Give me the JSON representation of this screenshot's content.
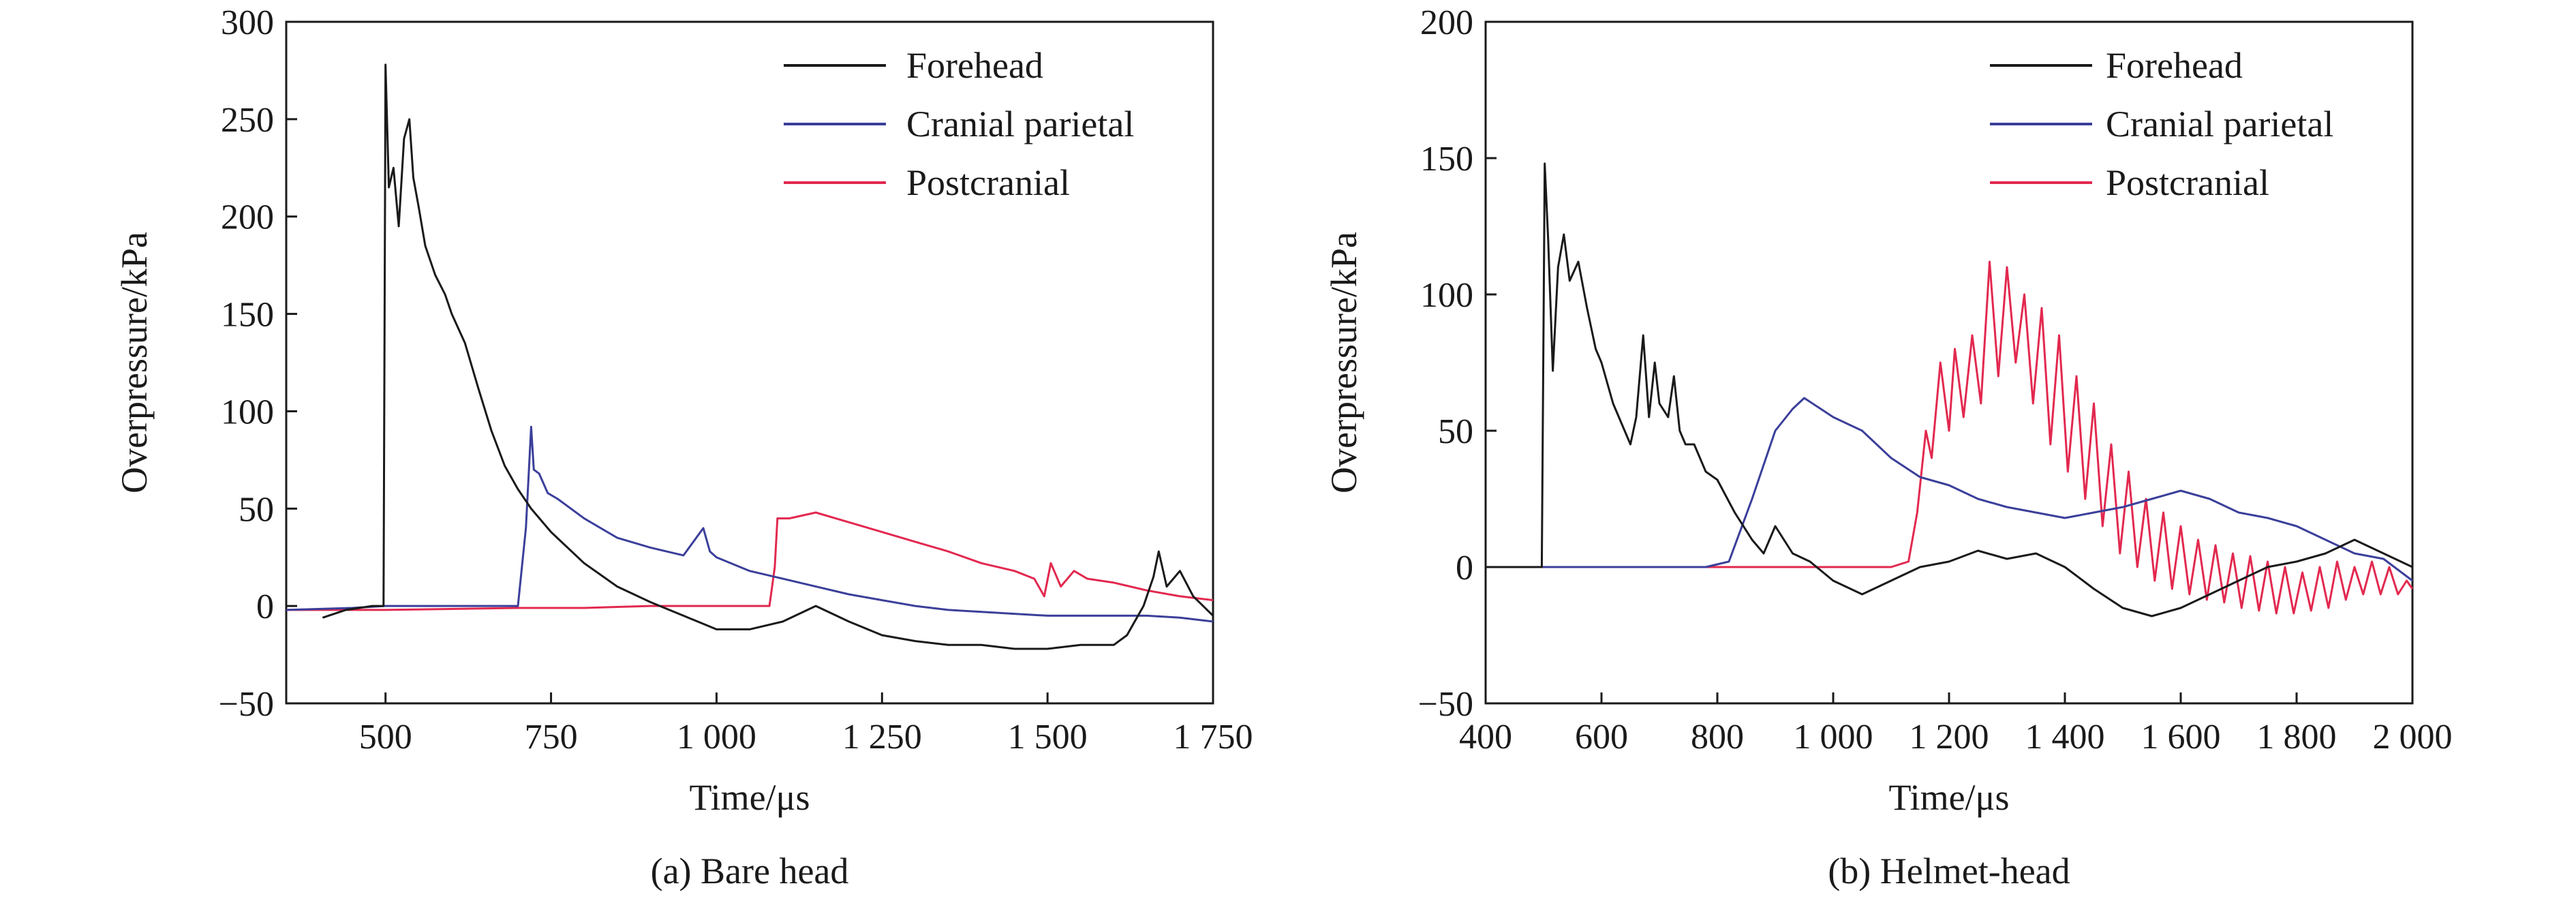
{
  "colors": {
    "Forehead": "#1a1a1a",
    "Cranial parietal": "#3b3f9a",
    "Postcranial": "#e2294f",
    "postcranial_transition": "#e07030"
  },
  "chart_data": [
    {
      "type": "line",
      "caption": "(a) Bare head",
      "xlabel": "Time/μs",
      "ylabel": "Overpressure/kPa",
      "xlim": [
        350,
        1750
      ],
      "ylim": [
        -50,
        300
      ],
      "xticks": [
        500,
        750,
        1000,
        1250,
        1500,
        1750
      ],
      "xtick_labels": [
        "500",
        "750",
        "1 000",
        "1 250",
        "1 500",
        "1 750"
      ],
      "yticks": [
        -50,
        0,
        50,
        100,
        150,
        200,
        250,
        300
      ],
      "ytick_labels": [
        "−50",
        "0",
        "50",
        "100",
        "150",
        "200",
        "250",
        "300"
      ],
      "legend_position": "top-right",
      "series": [
        {
          "name": "Forehead",
          "x": [
            405,
            440,
            480,
            497,
            500,
            505,
            512,
            520,
            528,
            536,
            542,
            550,
            560,
            575,
            590,
            600,
            620,
            640,
            660,
            680,
            700,
            720,
            750,
            800,
            850,
            900,
            950,
            1000,
            1050,
            1100,
            1150,
            1200,
            1250,
            1300,
            1350,
            1400,
            1450,
            1500,
            1550,
            1600,
            1620,
            1645,
            1660,
            1668,
            1680,
            1700,
            1720,
            1750
          ],
          "y": [
            -6,
            -2,
            0,
            0,
            278,
            215,
            225,
            195,
            240,
            250,
            220,
            205,
            185,
            170,
            160,
            150,
            135,
            112,
            90,
            72,
            60,
            50,
            38,
            22,
            10,
            2,
            -5,
            -12,
            -12,
            -8,
            0,
            -8,
            -15,
            -18,
            -20,
            -20,
            -22,
            -22,
            -20,
            -20,
            -15,
            0,
            15,
            28,
            10,
            18,
            5,
            -5
          ]
        },
        {
          "name": "Cranial parietal",
          "x": [
            350,
            450,
            500,
            550,
            600,
            650,
            700,
            712,
            720,
            724,
            732,
            745,
            760,
            800,
            850,
            900,
            950,
            980,
            990,
            1000,
            1050,
            1100,
            1150,
            1200,
            1250,
            1300,
            1350,
            1400,
            1450,
            1500,
            1550,
            1600,
            1650,
            1700,
            1750
          ],
          "y": [
            -2,
            -1,
            0,
            0,
            0,
            0,
            0,
            40,
            92,
            70,
            68,
            58,
            55,
            45,
            35,
            30,
            26,
            40,
            28,
            25,
            18,
            14,
            10,
            6,
            3,
            0,
            -2,
            -3,
            -4,
            -5,
            -5,
            -5,
            -5,
            -6,
            -8
          ]
        },
        {
          "name": "Postcranial",
          "x": [
            350,
            500,
            700,
            800,
            900,
            1000,
            1080,
            1088,
            1092,
            1110,
            1150,
            1200,
            1250,
            1300,
            1350,
            1400,
            1450,
            1480,
            1495,
            1505,
            1520,
            1540,
            1560,
            1600,
            1650,
            1700,
            1750
          ],
          "y": [
            -2,
            -2,
            -1,
            -1,
            0,
            0,
            0,
            20,
            45,
            45,
            48,
            43,
            38,
            33,
            28,
            22,
            18,
            14,
            5,
            22,
            10,
            18,
            14,
            12,
            8,
            5,
            3
          ]
        }
      ]
    },
    {
      "type": "line",
      "caption": "(b) Helmet-head",
      "xlabel": "Time/μs",
      "ylabel": "Overpressure/kPa",
      "xlim": [
        400,
        2000
      ],
      "ylim": [
        -50,
        200
      ],
      "xticks": [
        400,
        600,
        800,
        1000,
        1200,
        1400,
        1600,
        1800,
        2000
      ],
      "xtick_labels": [
        "400",
        "600",
        "800",
        "1 000",
        "1 200",
        "1 400",
        "1 600",
        "1 800",
        "2 000"
      ],
      "yticks": [
        -50,
        0,
        50,
        100,
        150,
        200
      ],
      "ytick_labels": [
        "−50",
        "0",
        "50",
        "100",
        "150",
        "200"
      ],
      "legend_position": "top-right",
      "series": [
        {
          "name": "Forehead",
          "x": [
            400,
            490,
            497,
            502,
            508,
            516,
            525,
            535,
            545,
            560,
            575,
            590,
            600,
            620,
            640,
            650,
            660,
            672,
            682,
            692,
            700,
            715,
            725,
            735,
            745,
            760,
            780,
            800,
            830,
            860,
            880,
            900,
            930,
            960,
            1000,
            1050,
            1100,
            1150,
            1200,
            1250,
            1300,
            1350,
            1400,
            1450,
            1500,
            1550,
            1600,
            1650,
            1700,
            1750,
            1800,
            1850,
            1880,
            1900,
            1950,
            2000
          ],
          "y": [
            0,
            0,
            0,
            148,
            120,
            72,
            110,
            122,
            105,
            112,
            95,
            80,
            75,
            60,
            50,
            45,
            55,
            85,
            55,
            75,
            60,
            55,
            70,
            50,
            45,
            45,
            35,
            32,
            20,
            10,
            5,
            15,
            5,
            2,
            -5,
            -10,
            -5,
            0,
            2,
            6,
            3,
            5,
            0,
            -8,
            -15,
            -18,
            -15,
            -10,
            -5,
            0,
            2,
            5,
            8,
            10,
            5,
            0
          ]
        },
        {
          "name": "Cranial parietal",
          "x": [
            400,
            500,
            600,
            700,
            780,
            820,
            860,
            900,
            930,
            950,
            1000,
            1050,
            1100,
            1150,
            1200,
            1250,
            1300,
            1350,
            1400,
            1450,
            1500,
            1550,
            1600,
            1650,
            1700,
            1750,
            1800,
            1850,
            1900,
            1950,
            2000
          ],
          "y": [
            0,
            0,
            0,
            0,
            0,
            2,
            25,
            50,
            58,
            62,
            55,
            50,
            40,
            33,
            30,
            25,
            22,
            20,
            18,
            20,
            22,
            25,
            28,
            25,
            20,
            18,
            15,
            10,
            5,
            3,
            -5
          ]
        },
        {
          "name": "Postcranial",
          "x": [
            400,
            600,
            800,
            1000,
            1100,
            1130,
            1145,
            1160,
            1170,
            1185,
            1200,
            1210,
            1225,
            1240,
            1255,
            1270,
            1285,
            1300,
            1315,
            1330,
            1345,
            1360,
            1375,
            1390,
            1405,
            1420,
            1435,
            1450,
            1465,
            1480,
            1495,
            1510,
            1525,
            1540,
            1555,
            1570,
            1585,
            1600,
            1615,
            1630,
            1645,
            1660,
            1675,
            1690,
            1705,
            1720,
            1735,
            1750,
            1765,
            1780,
            1795,
            1810,
            1825,
            1840,
            1855,
            1870,
            1885,
            1900,
            1915,
            1930,
            1945,
            1960,
            1975,
            1990,
            2000
          ],
          "y": [
            0,
            0,
            0,
            0,
            0,
            2,
            20,
            50,
            40,
            75,
            50,
            80,
            55,
            85,
            60,
            112,
            70,
            110,
            75,
            100,
            60,
            95,
            45,
            85,
            35,
            70,
            25,
            60,
            15,
            45,
            5,
            35,
            0,
            25,
            -5,
            20,
            -8,
            15,
            -10,
            10,
            -12,
            8,
            -13,
            5,
            -15,
            4,
            -16,
            2,
            -17,
            0,
            -17,
            -2,
            -16,
            0,
            -15,
            2,
            -12,
            0,
            -10,
            2,
            -10,
            0,
            -10,
            -5,
            -8
          ]
        }
      ]
    }
  ]
}
